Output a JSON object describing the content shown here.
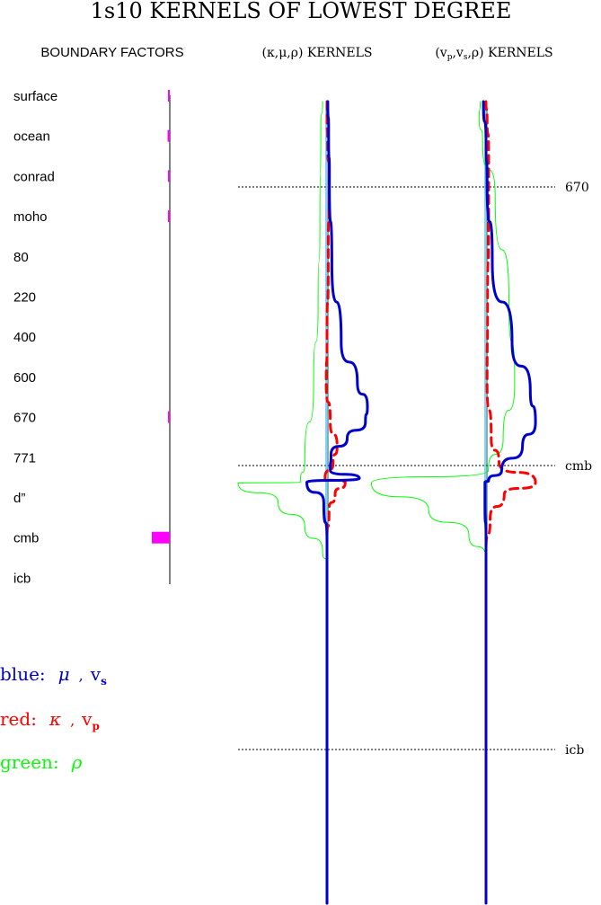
{
  "title": "1s10 KERNELS OF LOWEST DEGREE",
  "boundary_panel": {
    "heading": "BOUNDARY FACTORS",
    "labels": [
      "surface",
      "ocean",
      "conrad",
      "moho",
      "80",
      "220",
      "400",
      "600",
      "670",
      "771",
      "d”",
      "cmb",
      "icb"
    ]
  },
  "kernel_panel_1": {
    "heading_html": "(&#954;,&#956;,&#961;) KERNELS"
  },
  "kernel_panel_2": {
    "heading_html": "(v<tspan font-size='9' dy='3'>p</tspan><tspan dy='-3'>,v</tspan><tspan font-size='9' dy='3'>s</tspan><tspan dy='-3'>,&#961;) KERNELS</tspan>"
  },
  "reference_lines": [
    {
      "label": "670"
    },
    {
      "label": "cmb"
    },
    {
      "label": "icb"
    }
  ],
  "legend": [
    {
      "key": "blue:",
      "symbol": "μ",
      "sep": ",",
      "var": "v",
      "sub": "s",
      "color": "#0000cc"
    },
    {
      "key": "red:",
      "symbol": "κ",
      "sep": ",",
      "var": "v",
      "sub": "p",
      "color": "#ff0000"
    },
    {
      "key": "green:",
      "symbol": "ρ",
      "sep": "",
      "var": "",
      "sub": "",
      "color": "#00ff00"
    }
  ],
  "colors": {
    "blue": "#0000cc",
    "red": "#ff0000",
    "green": "#00ff00",
    "magenta": "#ff00ff",
    "axis": "#000000"
  },
  "chart_data": {
    "type": "line",
    "title": "1s10 KERNELS OF LOWEST DEGREE",
    "boundary_factors": [
      {
        "label": "surface",
        "value": 0.09
      },
      {
        "label": "ocean",
        "value": 0.12
      },
      {
        "label": "conrad",
        "value": 0.03
      },
      {
        "label": "moho",
        "value": 0.07
      },
      {
        "label": "80",
        "value": 0.0
      },
      {
        "label": "220",
        "value": 0.0
      },
      {
        "label": "400",
        "value": 0.0
      },
      {
        "label": "600",
        "value": 0.0
      },
      {
        "label": "670",
        "value": 0.05
      },
      {
        "label": "771",
        "value": 0.0
      },
      {
        "label": "d”",
        "value": 0.0
      },
      {
        "label": "cmb",
        "value": 1.0
      },
      {
        "label": "icb",
        "value": 0.0
      }
    ],
    "panels": [
      {
        "heading": "(κ,μ,ρ) KERNELS",
        "series": [
          {
            "color": "blue",
            "width": 3,
            "points": [
              [
                0,
                0.02
              ],
              [
                0.04,
                0.04
              ],
              [
                0.1,
                0.06
              ],
              [
                0.2,
                0.12
              ],
              [
                0.3,
                0.35
              ],
              [
                0.35,
                0.75
              ],
              [
                0.38,
                1.0
              ],
              [
                0.4,
                0.95
              ],
              [
                0.42,
                0.5
              ],
              [
                0.44,
                0.1
              ],
              [
                0.46,
                0.08
              ],
              [
                0.47,
                0.8
              ],
              [
                0.475,
                -0.5
              ],
              [
                0.5,
                -0.08
              ],
              [
                0.55,
                0.0
              ],
              [
                1,
                0.0
              ]
            ]
          },
          {
            "color": "red",
            "dashed": true,
            "width": 3,
            "points": [
              [
                0,
                0.0
              ],
              [
                0.02,
                0.0
              ],
              [
                0.05,
                0.02
              ],
              [
                0.1,
                0.05
              ],
              [
                0.2,
                0.03
              ],
              [
                0.3,
                0.0
              ],
              [
                0.35,
                -0.02
              ],
              [
                0.4,
                0.08
              ],
              [
                0.43,
                0.25
              ],
              [
                0.45,
                0.15
              ],
              [
                0.47,
                -0.05
              ],
              [
                0.475,
                0.45
              ],
              [
                0.49,
                0.2
              ],
              [
                0.51,
                0.05
              ],
              [
                0.55,
                0.0
              ],
              [
                1,
                0.0
              ]
            ]
          },
          {
            "color": "green",
            "width": 1,
            "points": [
              [
                0,
                -0.05
              ],
              [
                0.03,
                -0.07
              ],
              [
                0.15,
                -0.08
              ],
              [
                0.25,
                -0.1
              ],
              [
                0.35,
                -0.15
              ],
              [
                0.45,
                -0.25
              ],
              [
                0.475,
                -0.3
              ],
              [
                0.476,
                -1.0
              ],
              [
                0.5,
                -0.55
              ],
              [
                0.53,
                -0.25
              ],
              [
                0.56,
                -0.05
              ],
              [
                0.58,
                0.0
              ],
              [
                1,
                0.0
              ]
            ]
          }
        ]
      },
      {
        "heading": "(vp,vs,ρ) KERNELS",
        "series": [
          {
            "color": "blue",
            "width": 3,
            "points": [
              [
                0,
                -0.05
              ],
              [
                0.05,
                0.0
              ],
              [
                0.1,
                0.02
              ],
              [
                0.2,
                0.12
              ],
              [
                0.3,
                0.5
              ],
              [
                0.36,
                0.85
              ],
              [
                0.4,
                0.95
              ],
              [
                0.43,
                0.7
              ],
              [
                0.46,
                0.3
              ],
              [
                0.473,
                0.05
              ],
              [
                0.475,
                -0.02
              ],
              [
                0.5,
                -0.02
              ],
              [
                0.55,
                0.0
              ],
              [
                1,
                0.0
              ]
            ]
          },
          {
            "color": "red",
            "dashed": true,
            "width": 3,
            "points": [
              [
                0,
                0.0
              ],
              [
                0.02,
                0.02
              ],
              [
                0.06,
                0.05
              ],
              [
                0.15,
                0.05
              ],
              [
                0.25,
                0.03
              ],
              [
                0.35,
                0.02
              ],
              [
                0.42,
                0.1
              ],
              [
                0.45,
                0.25
              ],
              [
                0.475,
                0.95
              ],
              [
                0.49,
                0.35
              ],
              [
                0.52,
                0.08
              ],
              [
                0.56,
                0.0
              ],
              [
                1,
                0.0
              ]
            ]
          },
          {
            "color": "green",
            "width": 1,
            "points": [
              [
                0,
                -0.05
              ],
              [
                0.02,
                -0.06
              ],
              [
                0.05,
                -0.03
              ],
              [
                0.12,
                0.08
              ],
              [
                0.25,
                0.2
              ],
              [
                0.35,
                0.25
              ],
              [
                0.42,
                0.15
              ],
              [
                0.46,
                0.02
              ],
              [
                0.476,
                -1.0
              ],
              [
                0.51,
                -0.5
              ],
              [
                0.54,
                -0.15
              ],
              [
                0.57,
                0.0
              ],
              [
                1,
                0.0
              ]
            ]
          }
        ]
      }
    ]
  }
}
